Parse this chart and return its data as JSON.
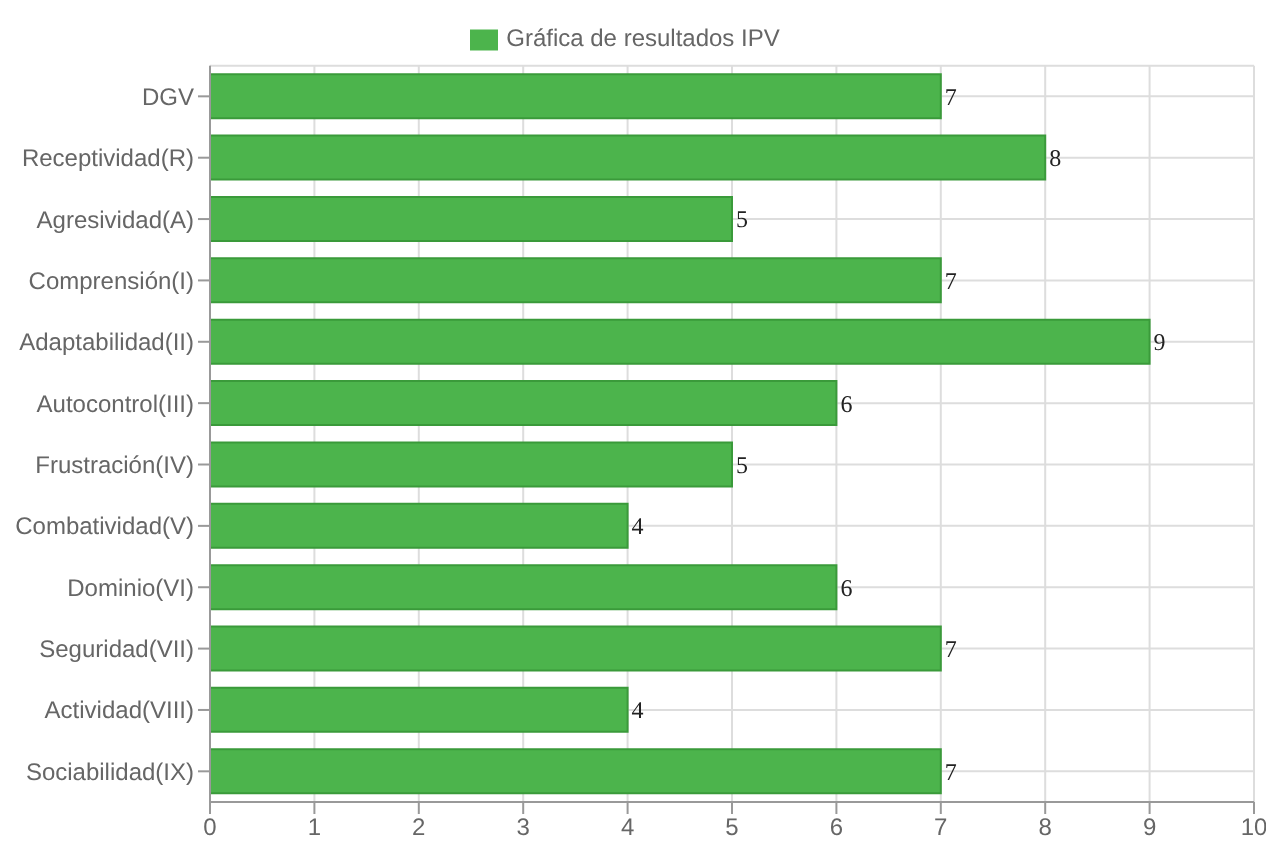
{
  "chart_data": {
    "type": "bar",
    "orientation": "horizontal",
    "categories": [
      "DGV",
      "Receptividad(R)",
      "Agresividad(A)",
      "Comprensión(I)",
      "Adaptabilidad(II)",
      "Autocontrol(III)",
      "Frustración(IV)",
      "Combatividad(V)",
      "Dominio(VI)",
      "Seguridad(VII)",
      "Actividad(VIII)",
      "Sociabilidad(IX)"
    ],
    "series": [
      {
        "name": "Gráfica de resultados IPV",
        "color": "#4cb44c",
        "values": [
          7,
          8,
          5,
          7,
          9,
          6,
          5,
          4,
          6,
          7,
          4,
          7
        ]
      }
    ],
    "xlim": [
      0,
      10
    ],
    "xticks": [
      0,
      1,
      2,
      3,
      4,
      5,
      6,
      7,
      8,
      9,
      10
    ],
    "grid": true,
    "legend": "top",
    "data_labels": true
  }
}
